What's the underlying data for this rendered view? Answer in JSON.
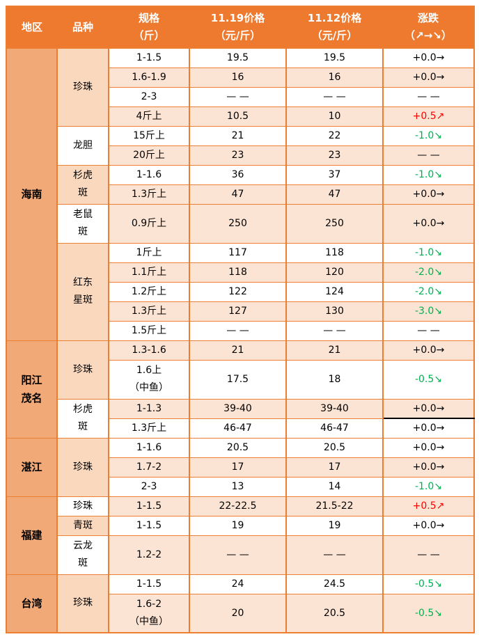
{
  "table": {
    "header": {
      "region": "地区",
      "variety": "品种",
      "spec_line1": "规格",
      "spec_line2": "（斤）",
      "price1_line1": "11.19价格",
      "price1_line2": "（元/斤）",
      "price2_line1": "11.12价格",
      "price2_line2": "（元/斤）",
      "change_line1": "涨跌",
      "change_line2": "（↗→↘）"
    },
    "colors": {
      "header_bg": "#EE7A2F",
      "header_text": "#FFFFFF",
      "region_bg": "#F2A978",
      "variety_peach": "#FAD8BE",
      "row_peach": "#FCE4D4",
      "row_white": "#FFFFFF",
      "border_orange": "#ED7D31",
      "rise_red": "#FF0000",
      "fall_green": "#00B050",
      "text": "#000000"
    },
    "regions": [
      {
        "label": "海南",
        "lines": [
          "海南"
        ],
        "row_count": 14
      },
      {
        "label": "阳江茂名",
        "lines": [
          "阳江",
          "茂名"
        ],
        "row_count": 4
      },
      {
        "label": "湛江",
        "lines": [
          "湛江"
        ],
        "row_count": 3
      },
      {
        "label": "福建",
        "lines": [
          "福建"
        ],
        "row_count": 3
      },
      {
        "label": "台湾",
        "lines": [
          "台湾"
        ],
        "row_count": 2
      }
    ],
    "varieties": [
      {
        "label": "珍珠",
        "lines": [
          "珍珠"
        ],
        "row_count": 4,
        "bg": "peach"
      },
      {
        "label": "龙胆",
        "lines": [
          "龙胆"
        ],
        "row_count": 2,
        "bg": "white"
      },
      {
        "label": "杉虎斑",
        "lines": [
          "杉虎",
          "斑"
        ],
        "row_count": 2,
        "bg": "peach"
      },
      {
        "label": "老鼠斑",
        "lines": [
          "老鼠",
          "斑"
        ],
        "row_count": 1,
        "bg": "white"
      },
      {
        "label": "红东星斑",
        "lines": [
          "红东",
          "星斑"
        ],
        "row_count": 5,
        "bg": "peach"
      },
      {
        "label": "珍珠",
        "lines": [
          "珍珠"
        ],
        "row_count": 2,
        "bg": "peach"
      },
      {
        "label": "杉虎斑",
        "lines": [
          "杉虎",
          "斑"
        ],
        "row_count": 2,
        "bg": "white"
      },
      {
        "label": "珍珠",
        "lines": [
          "珍珠"
        ],
        "row_count": 3,
        "bg": "peach"
      },
      {
        "label": "珍珠",
        "lines": [
          "珍珠"
        ],
        "row_count": 1,
        "bg": "white"
      },
      {
        "label": "青斑",
        "lines": [
          "青斑"
        ],
        "row_count": 1,
        "bg": "peach"
      },
      {
        "label": "云龙斑",
        "lines": [
          "云龙",
          "斑"
        ],
        "row_count": 1,
        "bg": "white"
      },
      {
        "label": "珍珠",
        "lines": [
          "珍珠"
        ],
        "row_count": 2,
        "bg": "peach"
      }
    ],
    "rows": [
      {
        "spec": [
          "1-1.5"
        ],
        "p1": "19.5",
        "p2": "19.5",
        "chg": "+0.0→",
        "chg_color": "black",
        "bg": "white",
        "tall": false
      },
      {
        "spec": [
          "1.6-1.9"
        ],
        "p1": "16",
        "p2": "16",
        "chg": "+0.0→",
        "chg_color": "black",
        "bg": "peach",
        "tall": false
      },
      {
        "spec": [
          "2-3"
        ],
        "p1": "— —",
        "p2": "— —",
        "chg": "— —",
        "chg_color": "black",
        "bg": "white",
        "tall": false
      },
      {
        "spec": [
          "4斤上"
        ],
        "p1": "10.5",
        "p2": "10",
        "chg": "+0.5↗",
        "chg_color": "red",
        "bg": "peach",
        "tall": false
      },
      {
        "spec": [
          "15斤上"
        ],
        "p1": "21",
        "p2": "22",
        "chg": "-1.0↘",
        "chg_color": "green",
        "bg": "white",
        "tall": false
      },
      {
        "spec": [
          "20斤上"
        ],
        "p1": "23",
        "p2": "23",
        "chg": "— —",
        "chg_color": "black",
        "bg": "peach",
        "tall": false
      },
      {
        "spec": [
          "1-1.6"
        ],
        "p1": "36",
        "p2": "37",
        "chg": "-1.0↘",
        "chg_color": "green",
        "bg": "white",
        "tall": false
      },
      {
        "spec": [
          "1.3斤上"
        ],
        "p1": "47",
        "p2": "47",
        "chg": "+0.0→",
        "chg_color": "black",
        "bg": "peach",
        "tall": false
      },
      {
        "spec": [
          "0.9斤上"
        ],
        "p1": "250",
        "p2": "250",
        "chg": "+0.0→",
        "chg_color": "black",
        "bg": "peach",
        "tall": true
      },
      {
        "spec": [
          "1斤上"
        ],
        "p1": "117",
        "p2": "118",
        "chg": "-1.0↘",
        "chg_color": "green",
        "bg": "white",
        "tall": false
      },
      {
        "spec": [
          "1.1斤上"
        ],
        "p1": "118",
        "p2": "120",
        "chg": "-2.0↘",
        "chg_color": "green",
        "bg": "peach",
        "tall": false
      },
      {
        "spec": [
          "1.2斤上"
        ],
        "p1": "122",
        "p2": "124",
        "chg": "-2.0↘",
        "chg_color": "green",
        "bg": "white",
        "tall": false
      },
      {
        "spec": [
          "1.3斤上"
        ],
        "p1": "127",
        "p2": "130",
        "chg": "-3.0↘",
        "chg_color": "green",
        "bg": "peach",
        "tall": false
      },
      {
        "spec": [
          "1.5斤上"
        ],
        "p1": "— —",
        "p2": "— —",
        "chg": "— —",
        "chg_color": "black",
        "bg": "white",
        "tall": false
      },
      {
        "spec": [
          "1.3-1.6"
        ],
        "p1": "21",
        "p2": "21",
        "chg": "+0.0→",
        "chg_color": "black",
        "bg": "peach",
        "tall": false
      },
      {
        "spec": [
          "1.6上",
          "（中鱼）"
        ],
        "p1": "17.5",
        "p2": "18",
        "chg": "-0.5↘",
        "chg_color": "green",
        "bg": "white",
        "tall": true
      },
      {
        "spec": [
          "1-1.3"
        ],
        "p1": "39-40",
        "p2": "39-40",
        "chg": "+0.0→",
        "chg_color": "black",
        "bg": "peach",
        "tall": false,
        "chg_black_underline": true
      },
      {
        "spec": [
          "1.3斤上"
        ],
        "p1": "46-47",
        "p2": "46-47",
        "chg": "+0.0→",
        "chg_color": "black",
        "bg": "white",
        "tall": false
      },
      {
        "spec": [
          "1-1.6"
        ],
        "p1": "20.5",
        "p2": "20.5",
        "chg": "+0.0→",
        "chg_color": "black",
        "bg": "white",
        "tall": false
      },
      {
        "spec": [
          "1.7-2"
        ],
        "p1": "17",
        "p2": "17",
        "chg": "+0.0→",
        "chg_color": "black",
        "bg": "peach",
        "tall": false
      },
      {
        "spec": [
          "2-3"
        ],
        "p1": "13",
        "p2": "14",
        "chg": "-1.0↘",
        "chg_color": "green",
        "bg": "white",
        "tall": false
      },
      {
        "spec": [
          "1-1.5"
        ],
        "p1": "22-22.5",
        "p2": "21.5-22",
        "chg": "+0.5↗",
        "chg_color": "red",
        "bg": "peach",
        "tall": false
      },
      {
        "spec": [
          "1-1.5"
        ],
        "p1": "19",
        "p2": "19",
        "chg": "+0.0→",
        "chg_color": "black",
        "bg": "white",
        "tall": false
      },
      {
        "spec": [
          "1.2-2"
        ],
        "p1": "— —",
        "p2": "— —",
        "chg": "— —",
        "chg_color": "black",
        "bg": "peach",
        "tall": true
      },
      {
        "spec": [
          "1-1.5"
        ],
        "p1": "24",
        "p2": "24.5",
        "chg": "-0.5↘",
        "chg_color": "green",
        "bg": "white",
        "tall": false
      },
      {
        "spec": [
          "1.6-2",
          "（中鱼）"
        ],
        "p1": "20",
        "p2": "20.5",
        "chg": "-0.5↘",
        "chg_color": "green",
        "bg": "peach",
        "tall": true
      }
    ]
  },
  "chart_data": {
    "type": "table",
    "title": "",
    "columns": [
      "地区",
      "品种",
      "规格(斤)",
      "11.19价格(元/斤)",
      "11.12价格(元/斤)",
      "涨跌(↗→↘)"
    ],
    "rows": [
      [
        "海南",
        "珍珠",
        "1-1.5",
        "19.5",
        "19.5",
        "+0.0→"
      ],
      [
        "海南",
        "珍珠",
        "1.6-1.9",
        "16",
        "16",
        "+0.0→"
      ],
      [
        "海南",
        "珍珠",
        "2-3",
        "——",
        "——",
        "——"
      ],
      [
        "海南",
        "珍珠",
        "4斤上",
        "10.5",
        "10",
        "+0.5↗"
      ],
      [
        "海南",
        "龙胆",
        "15斤上",
        "21",
        "22",
        "-1.0↘"
      ],
      [
        "海南",
        "龙胆",
        "20斤上",
        "23",
        "23",
        "——"
      ],
      [
        "海南",
        "杉虎斑",
        "1-1.6",
        "36",
        "37",
        "-1.0↘"
      ],
      [
        "海南",
        "杉虎斑",
        "1.3斤上",
        "47",
        "47",
        "+0.0→"
      ],
      [
        "海南",
        "老鼠斑",
        "0.9斤上",
        "250",
        "250",
        "+0.0→"
      ],
      [
        "海南",
        "红东星斑",
        "1斤上",
        "117",
        "118",
        "-1.0↘"
      ],
      [
        "海南",
        "红东星斑",
        "1.1斤上",
        "118",
        "120",
        "-2.0↘"
      ],
      [
        "海南",
        "红东星斑",
        "1.2斤上",
        "122",
        "124",
        "-2.0↘"
      ],
      [
        "海南",
        "红东星斑",
        "1.3斤上",
        "127",
        "130",
        "-3.0↘"
      ],
      [
        "海南",
        "红东星斑",
        "1.5斤上",
        "——",
        "——",
        "——"
      ],
      [
        "阳江茂名",
        "珍珠",
        "1.3-1.6",
        "21",
        "21",
        "+0.0→"
      ],
      [
        "阳江茂名",
        "珍珠",
        "1.6上(中鱼)",
        "17.5",
        "18",
        "-0.5↘"
      ],
      [
        "阳江茂名",
        "杉虎斑",
        "1-1.3",
        "39-40",
        "39-40",
        "+0.0→"
      ],
      [
        "阳江茂名",
        "杉虎斑",
        "1.3斤上",
        "46-47",
        "46-47",
        "+0.0→"
      ],
      [
        "湛江",
        "珍珠",
        "1-1.6",
        "20.5",
        "20.5",
        "+0.0→"
      ],
      [
        "湛江",
        "珍珠",
        "1.7-2",
        "17",
        "17",
        "+0.0→"
      ],
      [
        "湛江",
        "珍珠",
        "2-3",
        "13",
        "14",
        "-1.0↘"
      ],
      [
        "福建",
        "珍珠",
        "1-1.5",
        "22-22.5",
        "21.5-22",
        "+0.5↗"
      ],
      [
        "福建",
        "青斑",
        "1-1.5",
        "19",
        "19",
        "+0.0→"
      ],
      [
        "福建",
        "云龙斑",
        "1.2-2",
        "——",
        "——",
        "——"
      ],
      [
        "台湾",
        "珍珠",
        "1-1.5",
        "24",
        "24.5",
        "-0.5↘"
      ],
      [
        "台湾",
        "珍珠",
        "1.6-2(中鱼)",
        "20",
        "20.5",
        "-0.5↘"
      ]
    ]
  }
}
